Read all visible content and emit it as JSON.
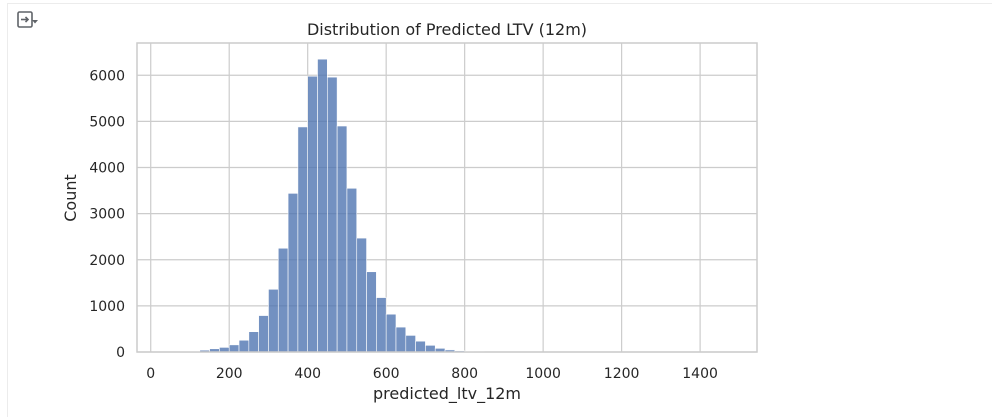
{
  "output_toggle_icon": "output-toggle-icon",
  "chart_data": {
    "type": "bar",
    "title": "Distribution of Predicted LTV (12m)",
    "xlabel": "predicted_ltv_12m",
    "ylabel": "Count",
    "xlim": [
      -35,
      1545
    ],
    "ylim": [
      0,
      6700
    ],
    "xticks": [
      0,
      200,
      400,
      600,
      800,
      1000,
      1200,
      1400
    ],
    "yticks": [
      0,
      1000,
      2000,
      3000,
      4000,
      5000,
      6000
    ],
    "grid": true,
    "bar_color": "#4c72b0",
    "bin_edges": [
      0,
      25,
      50,
      75,
      100,
      125,
      150,
      175,
      200,
      225,
      250,
      275,
      300,
      325,
      350,
      375,
      400,
      425,
      450,
      475,
      500,
      525,
      550,
      575,
      600,
      625,
      650,
      675,
      700,
      725,
      750,
      775,
      800,
      825,
      850,
      875,
      900,
      925,
      950,
      975,
      1000,
      1025,
      1050,
      1075,
      1100,
      1125,
      1150,
      1175,
      1200,
      1225,
      1250,
      1275,
      1300,
      1325,
      1350,
      1375,
      1400,
      1425,
      1450,
      1475,
      1500
    ],
    "values": [
      3,
      4,
      6,
      10,
      16,
      40,
      70,
      100,
      155,
      255,
      440,
      790,
      1360,
      2250,
      3440,
      4880,
      5980,
      6350,
      5960,
      4900,
      3550,
      2470,
      1740,
      1180,
      820,
      540,
      360,
      235,
      145,
      80,
      45,
      25,
      15,
      10,
      7,
      5,
      4,
      3,
      2,
      2,
      2,
      1,
      1,
      1,
      1,
      1,
      1,
      1,
      1,
      1,
      1,
      1,
      1,
      1,
      1,
      1,
      1,
      1,
      1,
      1
    ]
  }
}
